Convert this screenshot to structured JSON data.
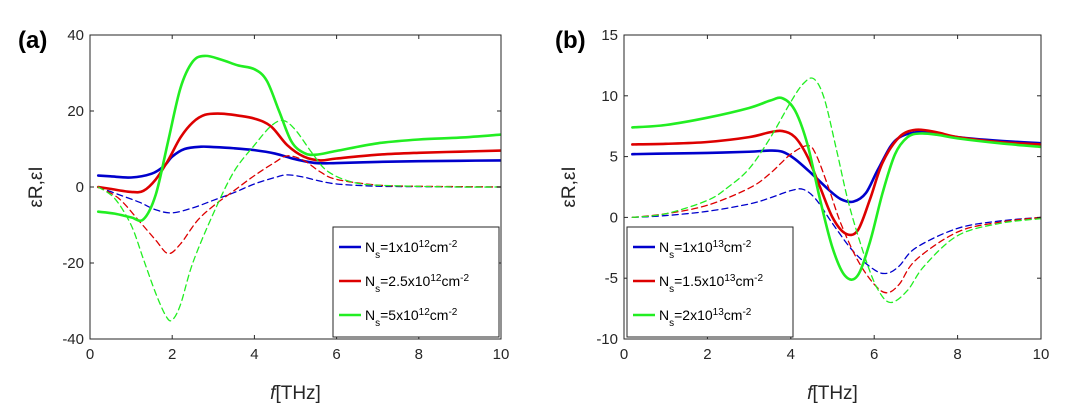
{
  "chart_data": [
    {
      "type": "line",
      "panel_label": "(a)",
      "xlabel_italic": "f",
      "xlabel_unit": "[THz]",
      "ylabel": "εR,εI",
      "xlim": [
        0,
        10
      ],
      "ylim": [
        -40,
        40
      ],
      "xticks": [
        0,
        2,
        4,
        6,
        8,
        10
      ],
      "yticks": [
        -40,
        -20,
        0,
        20,
        40
      ],
      "legend_position": "bottom-right",
      "legend": [
        {
          "prefix": "N",
          "sub": "s",
          "mid": "=1x10",
          "sup": "12",
          "tail": "cm",
          "tail_sup": "-2",
          "color": "#0000cc"
        },
        {
          "prefix": "N",
          "sub": "s",
          "mid": "=2.5x10",
          "sup": "12",
          "tail": "cm",
          "tail_sup": "-2",
          "color": "#dd0000"
        },
        {
          "prefix": "N",
          "sub": "s",
          "mid": "=5x10",
          "sup": "12",
          "tail": "cm",
          "tail_sup": "-2",
          "color": "#22ee22"
        }
      ],
      "series": [
        {
          "color": "#0000cc",
          "style": "solid",
          "x": [
            0.2,
            0.5,
            1,
            1.5,
            1.8,
            2,
            2.3,
            2.7,
            3,
            3.5,
            4,
            4.5,
            5,
            5.5,
            6,
            7,
            8,
            9,
            10
          ],
          "y": [
            3,
            2.8,
            2.5,
            3.5,
            5.5,
            8,
            10,
            10.6,
            10.5,
            10.2,
            9.7,
            8.8,
            7.3,
            6.3,
            6.3,
            6.6,
            6.8,
            6.9,
            7
          ]
        },
        {
          "color": "#0000cc",
          "style": "dashed",
          "x": [
            0.2,
            0.7,
            1.2,
            1.6,
            2,
            2.5,
            3,
            3.5,
            4,
            4.5,
            4.8,
            5.2,
            5.5,
            6,
            7,
            8,
            9,
            10
          ],
          "y": [
            0,
            -2,
            -4,
            -6,
            -6.8,
            -5.5,
            -3.5,
            -1.5,
            0.8,
            2.5,
            3.2,
            2.6,
            1.8,
            0.8,
            0.2,
            0.1,
            0,
            0
          ]
        },
        {
          "color": "#dd0000",
          "style": "solid",
          "x": [
            0.2,
            0.5,
            1,
            1.3,
            1.6,
            1.9,
            2.2,
            2.5,
            2.8,
            3.2,
            3.6,
            4,
            4.4,
            4.8,
            5.2,
            5.6,
            6,
            7,
            8,
            9,
            10
          ],
          "y": [
            0,
            -0.5,
            -1.3,
            -1,
            2,
            7,
            13,
            17,
            19,
            19.3,
            18.8,
            18,
            16,
            11,
            8,
            7,
            7.5,
            8.5,
            9,
            9.3,
            9.6
          ]
        },
        {
          "color": "#dd0000",
          "style": "dashed",
          "x": [
            0.2,
            0.7,
            1.2,
            1.6,
            1.9,
            2.2,
            2.6,
            3,
            3.5,
            4,
            4.5,
            4.8,
            5.2,
            5.6,
            6,
            7,
            8,
            9,
            10
          ],
          "y": [
            0,
            -3,
            -9,
            -14,
            -17.5,
            -15,
            -9,
            -5,
            -1,
            3,
            6.5,
            8.2,
            7,
            4,
            2,
            0.5,
            0.2,
            0.1,
            0
          ]
        },
        {
          "color": "#22ee22",
          "style": "solid",
          "x": [
            0.2,
            0.6,
            1,
            1.3,
            1.6,
            1.9,
            2.2,
            2.5,
            2.8,
            3.2,
            3.6,
            4,
            4.3,
            4.6,
            4.9,
            5.2,
            5.5,
            6,
            7,
            8,
            9,
            10
          ],
          "y": [
            -6.5,
            -7,
            -8,
            -8.5,
            -2,
            12,
            26,
            33,
            34.5,
            33.5,
            32,
            31,
            28,
            20,
            12,
            9,
            8.5,
            9.5,
            11.5,
            12.5,
            13,
            13.8
          ]
        },
        {
          "color": "#22ee22",
          "style": "dashed",
          "x": [
            0.2,
            0.6,
            1,
            1.3,
            1.6,
            1.85,
            2,
            2.2,
            2.5,
            3,
            3.5,
            4,
            4.4,
            4.7,
            5,
            5.4,
            5.8,
            6.5,
            7.5,
            9,
            10
          ],
          "y": [
            0,
            -3,
            -10,
            -19,
            -28,
            -34,
            -35,
            -31,
            -20,
            -7,
            4,
            11,
            16,
            17.5,
            15,
            9,
            4,
            1,
            0.3,
            0,
            0
          ]
        }
      ]
    },
    {
      "type": "line",
      "panel_label": "(b)",
      "xlabel_italic": "f",
      "xlabel_unit": "[THz]",
      "ylabel": "εR,εI",
      "xlim": [
        0,
        10
      ],
      "ylim": [
        -10,
        15
      ],
      "xticks": [
        0,
        2,
        4,
        6,
        8,
        10
      ],
      "yticks": [
        -10,
        -5,
        0,
        5,
        10,
        15
      ],
      "legend_position": "bottom-left",
      "legend": [
        {
          "prefix": "N",
          "sub": "s",
          "mid": "=1x10",
          "sup": "13",
          "tail": "cm",
          "tail_sup": "-2",
          "color": "#0000cc"
        },
        {
          "prefix": "N",
          "sub": "s",
          "mid": "=1.5x10",
          "sup": "13",
          "tail": "cm",
          "tail_sup": "-2",
          "color": "#dd0000"
        },
        {
          "prefix": "N",
          "sub": "s",
          "mid": "=2x10",
          "sup": "13",
          "tail": "cm",
          "tail_sup": "-2",
          "color": "#22ee22"
        }
      ],
      "series": [
        {
          "color": "#0000cc",
          "style": "solid",
          "x": [
            0.2,
            1,
            2,
            3,
            3.5,
            3.8,
            4.1,
            4.5,
            4.9,
            5.2,
            5.5,
            5.8,
            6.1,
            6.5,
            7,
            7.5,
            8,
            9,
            10
          ],
          "y": [
            5.2,
            5.25,
            5.3,
            5.4,
            5.5,
            5.4,
            4.8,
            3.6,
            2.3,
            1.5,
            1.3,
            2,
            4,
            6.3,
            7,
            6.9,
            6.6,
            6.3,
            6.1
          ]
        },
        {
          "color": "#0000cc",
          "style": "dashed",
          "x": [
            0.2,
            1,
            2,
            3,
            3.5,
            4,
            4.3,
            4.6,
            5,
            5.5,
            6,
            6.3,
            6.6,
            7,
            8,
            9,
            10
          ],
          "y": [
            0,
            0.15,
            0.5,
            1.1,
            1.6,
            2.2,
            2.3,
            1.5,
            -0.5,
            -2.8,
            -4.3,
            -4.6,
            -4,
            -2.5,
            -0.9,
            -0.3,
            0
          ]
        },
        {
          "color": "#dd0000",
          "style": "solid",
          "x": [
            0.2,
            1,
            2,
            3,
            3.5,
            3.8,
            4.1,
            4.4,
            4.7,
            5,
            5.3,
            5.6,
            5.9,
            6.2,
            6.6,
            7,
            7.5,
            8,
            9,
            10
          ],
          "y": [
            6,
            6.05,
            6.2,
            6.6,
            7,
            7.1,
            6.6,
            5,
            2.5,
            0,
            -1.3,
            -1.1,
            1.5,
            4.5,
            6.6,
            7.2,
            7,
            6.6,
            6.2,
            6
          ]
        },
        {
          "color": "#dd0000",
          "style": "dashed",
          "x": [
            0.2,
            1,
            2,
            3,
            3.5,
            4,
            4.4,
            4.6,
            4.9,
            5.2,
            5.6,
            6,
            6.3,
            6.6,
            7,
            8,
            9,
            10
          ],
          "y": [
            0,
            0.3,
            1,
            2.4,
            3.6,
            5.2,
            5.9,
            5.2,
            2.5,
            -0.5,
            -3.5,
            -5.5,
            -6.2,
            -5.5,
            -3.5,
            -1.2,
            -0.4,
            0
          ]
        },
        {
          "color": "#22ee22",
          "style": "solid",
          "x": [
            0.2,
            1,
            2,
            3,
            3.5,
            3.8,
            4.1,
            4.4,
            4.7,
            5,
            5.3,
            5.6,
            5.9,
            6.2,
            6.5,
            6.8,
            7.1,
            7.5,
            8,
            9,
            10
          ],
          "y": [
            7.4,
            7.6,
            8.2,
            9,
            9.6,
            9.8,
            8.8,
            6,
            1.5,
            -2.5,
            -4.8,
            -4.8,
            -2,
            2,
            5.2,
            6.6,
            6.9,
            6.8,
            6.5,
            6.1,
            5.8
          ]
        },
        {
          "color": "#22ee22",
          "style": "dashed",
          "x": [
            0.2,
            1,
            2,
            2.5,
            3,
            3.5,
            4,
            4.3,
            4.55,
            4.8,
            5.1,
            5.4,
            5.8,
            6.1,
            6.4,
            6.8,
            7.2,
            8,
            9,
            10
          ],
          "y": [
            0,
            0.3,
            1.4,
            2.5,
            4,
            6.5,
            9.5,
            11,
            11.4,
            9.8,
            5.5,
            1,
            -3.5,
            -6,
            -7,
            -6,
            -4,
            -1.5,
            -0.5,
            -0.1
          ]
        }
      ]
    }
  ]
}
